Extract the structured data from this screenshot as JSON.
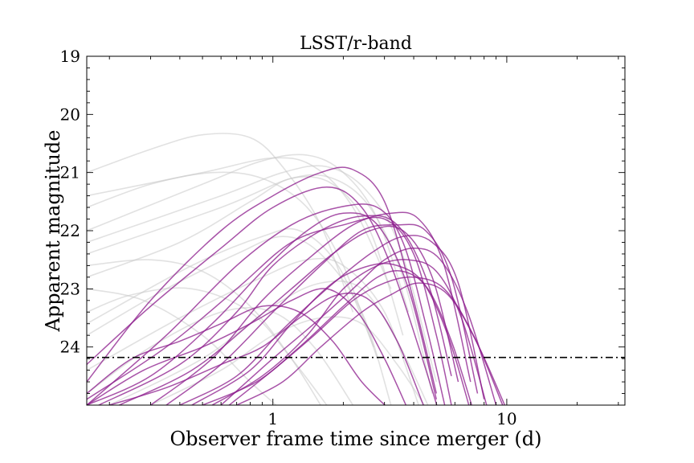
{
  "chart_data": {
    "type": "line",
    "title": "LSST/r-band",
    "xlabel": "Observer frame time since merger (d)",
    "ylabel": "Apparent magnitude",
    "x_scale": "log",
    "xlim": [
      0.16,
      32
    ],
    "ylim": [
      25.0,
      19.0
    ],
    "y_inverted": true,
    "x_ticks": [
      1,
      10
    ],
    "x_tick_labels": [
      "1",
      "10"
    ],
    "y_ticks": [
      19,
      20,
      21,
      22,
      23,
      24
    ],
    "y_tick_labels": [
      "19",
      "20",
      "21",
      "22",
      "23",
      "24"
    ],
    "grid": false,
    "colors": {
      "highlight": "#8b1a8b",
      "background": "#c8c8c8",
      "limit": "#000000"
    },
    "limiting_magnitude": 24.18,
    "highlight_series": [
      {
        "x": [
          0.16,
          0.3,
          0.6,
          1.0,
          1.7,
          2.4,
          3.2,
          4.2,
          5.2
        ],
        "y": [
          24.3,
          23.3,
          22.3,
          21.6,
          21.25,
          21.6,
          22.6,
          24.0,
          25.2
        ]
      },
      {
        "x": [
          0.16,
          0.3,
          0.6,
          1.0,
          1.6,
          2.2,
          3.0,
          4.0,
          5.0
        ],
        "y": [
          24.6,
          23.2,
          22.0,
          21.4,
          21.0,
          20.95,
          21.5,
          23.2,
          24.8
        ]
      },
      {
        "x": [
          0.16,
          0.35,
          0.7,
          1.2,
          1.9,
          2.8,
          3.6,
          4.5,
          5.5
        ],
        "y": [
          25.0,
          23.8,
          22.6,
          21.9,
          21.6,
          21.6,
          22.2,
          23.6,
          25.1
        ]
      },
      {
        "x": [
          0.16,
          0.35,
          0.7,
          1.2,
          2.0,
          3.0,
          4.0,
          5.0,
          5.8
        ],
        "y": [
          24.9,
          24.0,
          23.0,
          22.2,
          21.9,
          21.8,
          22.4,
          23.8,
          25.0
        ]
      },
      {
        "x": [
          0.18,
          0.4,
          0.7,
          1.0,
          1.6,
          2.4,
          3.4,
          4.6,
          5.8
        ],
        "y": [
          25.0,
          24.3,
          23.4,
          22.6,
          22.0,
          21.75,
          21.9,
          22.9,
          24.5
        ]
      },
      {
        "x": [
          0.22,
          0.45,
          0.8,
          1.2,
          1.8,
          2.6,
          3.6,
          4.8,
          6.2
        ],
        "y": [
          25.0,
          24.4,
          23.6,
          23.0,
          22.4,
          22.0,
          22.0,
          22.8,
          24.6
        ]
      },
      {
        "x": [
          0.3,
          0.55,
          0.9,
          1.4,
          2.2,
          3.2,
          4.2,
          5.4,
          7.0
        ],
        "y": [
          25.0,
          24.2,
          23.2,
          22.5,
          21.9,
          21.7,
          21.8,
          22.6,
          24.6
        ]
      },
      {
        "x": [
          0.35,
          0.6,
          1.0,
          1.6,
          2.4,
          3.4,
          4.5,
          5.8,
          7.5
        ],
        "y": [
          25.0,
          24.3,
          23.4,
          22.6,
          22.0,
          21.9,
          22.0,
          22.8,
          24.8
        ]
      },
      {
        "x": [
          0.4,
          0.7,
          1.1,
          1.7,
          2.6,
          3.6,
          4.8,
          6.2,
          8.0
        ],
        "y": [
          25.0,
          24.5,
          23.7,
          23.0,
          22.4,
          22.1,
          22.2,
          22.9,
          24.9
        ]
      },
      {
        "x": [
          0.45,
          0.8,
          1.2,
          1.8,
          2.6,
          3.4,
          4.4,
          5.6,
          7.0
        ],
        "y": [
          25.0,
          24.4,
          23.6,
          22.9,
          22.6,
          22.6,
          22.9,
          23.8,
          25.1
        ]
      },
      {
        "x": [
          0.5,
          0.85,
          1.3,
          2.0,
          2.8,
          3.6,
          4.6,
          5.8,
          7.2
        ],
        "y": [
          25.0,
          24.6,
          24.0,
          23.3,
          22.8,
          22.7,
          23.0,
          23.9,
          25.1
        ]
      },
      {
        "x": [
          0.55,
          0.9,
          1.4,
          2.0,
          2.8,
          3.8,
          5.0,
          6.4,
          8.2
        ],
        "y": [
          25.0,
          24.5,
          23.8,
          23.0,
          22.6,
          22.5,
          22.7,
          23.5,
          25.0
        ]
      },
      {
        "x": [
          0.6,
          1.0,
          1.5,
          2.2,
          3.0,
          4.0,
          5.2,
          6.8,
          9.0
        ],
        "y": [
          25.0,
          24.2,
          23.6,
          23.0,
          22.5,
          22.3,
          22.5,
          23.4,
          25.0
        ]
      },
      {
        "x": [
          0.65,
          1.0,
          1.5,
          2.2,
          3.0,
          4.0,
          5.4,
          7.2,
          9.6
        ],
        "y": [
          25.0,
          24.4,
          23.8,
          23.2,
          22.9,
          22.8,
          23.0,
          23.8,
          25.0
        ]
      },
      {
        "x": [
          0.7,
          1.1,
          1.6,
          2.4,
          3.2,
          4.2,
          5.6,
          7.4,
          9.8
        ],
        "y": [
          25.0,
          24.6,
          24.0,
          23.4,
          23.1,
          22.9,
          23.1,
          23.9,
          25.0
        ]
      },
      {
        "x": [
          0.16,
          0.25,
          0.4,
          0.6,
          0.9,
          1.3,
          1.8,
          2.4,
          3.2
        ],
        "y": [
          24.8,
          24.2,
          23.9,
          23.6,
          23.3,
          23.4,
          23.9,
          24.6,
          25.1
        ]
      },
      {
        "x": [
          0.16,
          0.28,
          0.5,
          0.8,
          1.2,
          1.7,
          2.3,
          3.0,
          3.8
        ],
        "y": [
          25.0,
          24.4,
          24.0,
          23.6,
          23.2,
          23.0,
          23.4,
          24.2,
          25.1
        ]
      },
      {
        "x": [
          0.2,
          0.35,
          0.6,
          0.9,
          1.3,
          1.9,
          2.6,
          3.4,
          4.4
        ],
        "y": [
          25.0,
          24.7,
          24.3,
          24.0,
          23.5,
          23.1,
          23.2,
          23.9,
          25.0
        ]
      },
      {
        "x": [
          0.16,
          0.3,
          0.55,
          0.9,
          1.4,
          2.0,
          2.8,
          3.8,
          5.0
        ],
        "y": [
          25.0,
          24.5,
          23.6,
          22.7,
          22.0,
          21.7,
          21.9,
          23.0,
          24.9
        ]
      }
    ],
    "background_series": [
      {
        "x": [
          0.16,
          0.3,
          0.5,
          0.8,
          1.1,
          1.6,
          2.2
        ],
        "y": [
          21.0,
          20.6,
          20.35,
          20.4,
          20.9,
          21.9,
          23.4
        ]
      },
      {
        "x": [
          0.16,
          0.3,
          0.55,
          0.9,
          1.4,
          2.0,
          2.8
        ],
        "y": [
          21.6,
          21.2,
          21.0,
          21.1,
          21.6,
          22.6,
          24.2
        ]
      },
      {
        "x": [
          0.16,
          0.4,
          0.8,
          1.2,
          1.8,
          2.6,
          3.6
        ],
        "y": [
          22.8,
          22.2,
          21.5,
          21.1,
          21.2,
          22.0,
          23.8
        ]
      },
      {
        "x": [
          0.16,
          0.5,
          0.9,
          1.4,
          2.0,
          2.8,
          3.8
        ],
        "y": [
          22.0,
          21.2,
          20.8,
          20.7,
          21.0,
          21.8,
          23.4
        ]
      },
      {
        "x": [
          0.16,
          0.3,
          0.5,
          0.8,
          1.2,
          1.6
        ],
        "y": [
          22.6,
          22.5,
          22.7,
          23.3,
          24.2,
          25.0
        ]
      },
      {
        "x": [
          0.16,
          0.25,
          0.45,
          0.8,
          1.2,
          1.7
        ],
        "y": [
          23.4,
          23.1,
          23.0,
          23.4,
          24.2,
          25.0
        ]
      },
      {
        "x": [
          0.16,
          0.35,
          0.7,
          1.1,
          1.6,
          2.4,
          3.2
        ],
        "y": [
          23.8,
          23.0,
          22.4,
          22.1,
          22.4,
          23.4,
          25.0
        ]
      },
      {
        "x": [
          0.16,
          0.4,
          0.9,
          1.4,
          2.0,
          3.0,
          4.2
        ],
        "y": [
          24.4,
          23.5,
          22.8,
          22.5,
          22.6,
          23.4,
          25.0
        ]
      },
      {
        "x": [
          0.2,
          0.5,
          1.0,
          1.6,
          2.4,
          3.4,
          4.6
        ],
        "y": [
          25.0,
          24.2,
          23.3,
          22.9,
          23.0,
          23.9,
          25.0
        ]
      },
      {
        "x": [
          0.16,
          0.5,
          1.0,
          1.5,
          2.2,
          3.2
        ],
        "y": [
          21.4,
          21.0,
          20.75,
          20.9,
          21.6,
          23.0
        ]
      },
      {
        "x": [
          0.16,
          0.6,
          1.2,
          1.8,
          2.6,
          3.6,
          4.8
        ],
        "y": [
          22.4,
          21.6,
          21.1,
          21.1,
          21.6,
          22.8,
          24.8
        ]
      },
      {
        "x": [
          0.16,
          0.3,
          0.6,
          1.0,
          1.5,
          2.2
        ],
        "y": [
          24.8,
          24.0,
          23.4,
          23.4,
          24.0,
          25.0
        ]
      },
      {
        "x": [
          0.3,
          0.6,
          1.0,
          1.6,
          2.4,
          3.4,
          4.6
        ],
        "y": [
          25.0,
          24.4,
          23.8,
          23.5,
          23.6,
          24.3,
          25.1
        ]
      },
      {
        "x": [
          0.16,
          0.28,
          0.5,
          0.8,
          1.1
        ],
        "y": [
          23.0,
          23.2,
          23.8,
          24.6,
          25.1
        ]
      },
      {
        "x": [
          0.16,
          0.6,
          1.1,
          1.7,
          2.5,
          3.5,
          5.0
        ],
        "y": [
          22.2,
          21.4,
          21.0,
          20.9,
          21.3,
          22.3,
          24.6
        ]
      },
      {
        "x": [
          0.16,
          0.45,
          0.9,
          1.3,
          1.9,
          2.7
        ],
        "y": [
          23.6,
          22.6,
          22.1,
          22.0,
          22.6,
          24.0
        ]
      }
    ]
  }
}
